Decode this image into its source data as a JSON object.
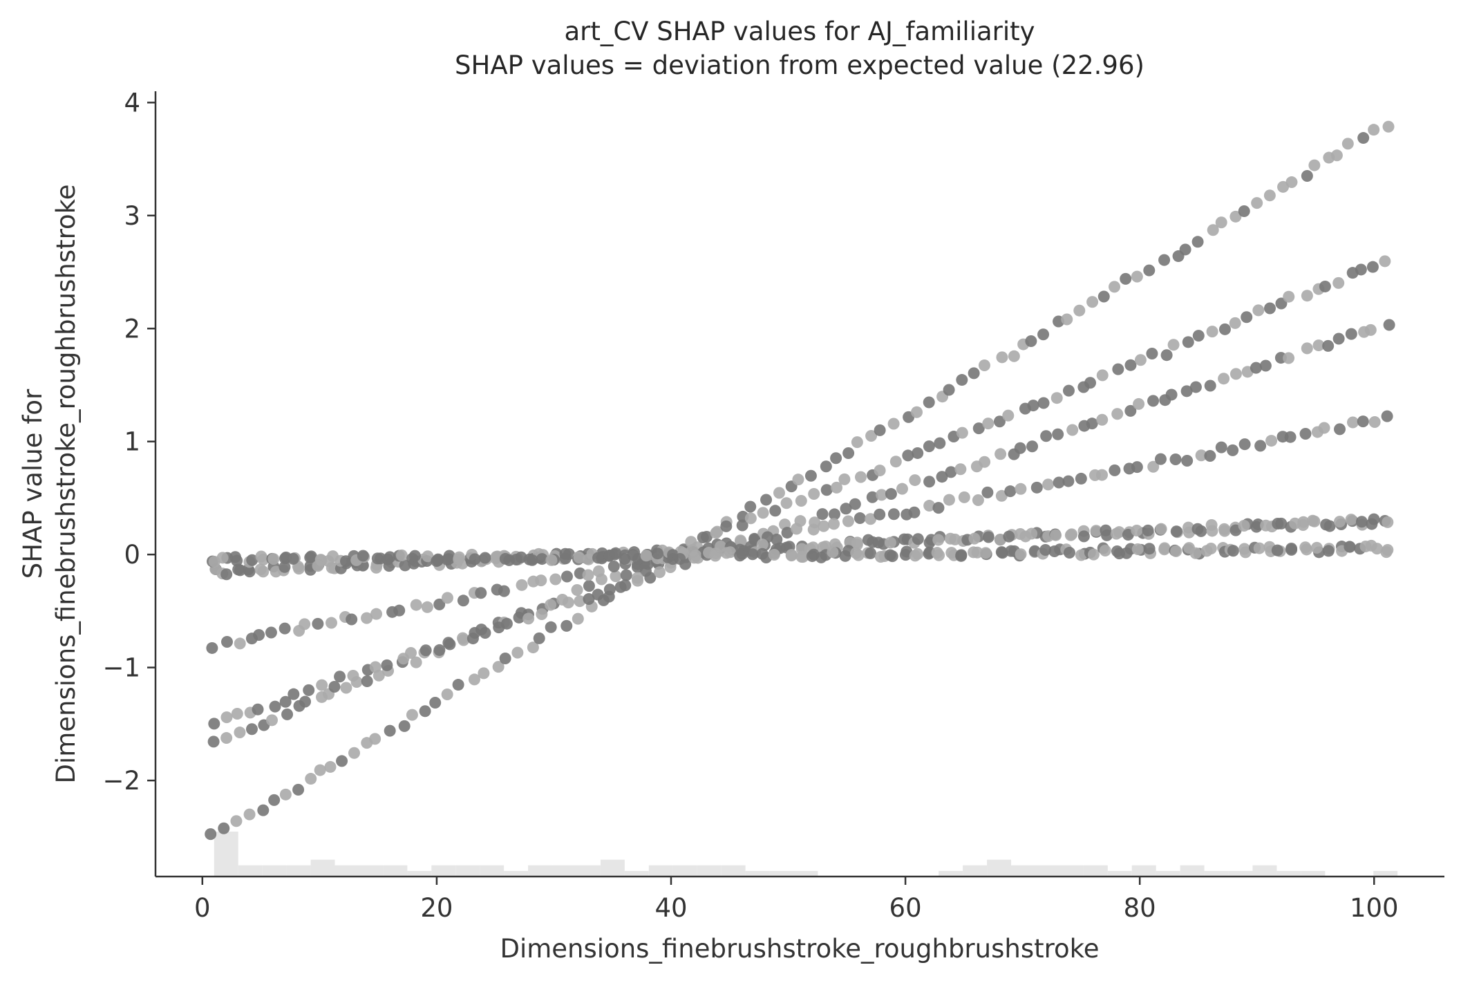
{
  "chart_data": {
    "type": "scatter",
    "title": "art_CV SHAP values for AJ_familiarity",
    "subtitle": "SHAP values = deviation from expected value (22.96)",
    "xlabel": "Dimensions_finebrushstroke_roughbrushstroke",
    "ylabel_line1": "SHAP value for",
    "ylabel_line2": "Dimensions_finebrushstroke_roughbrushstroke",
    "xlim": [
      -4,
      106
    ],
    "ylim": [
      -2.85,
      4.1
    ],
    "xticks": [
      0,
      20,
      40,
      60,
      80,
      100
    ],
    "xtick_labels": [
      "0",
      "20",
      "40",
      "60",
      "80",
      "100"
    ],
    "yticks": [
      -2,
      -1,
      0,
      1,
      2,
      3,
      4
    ],
    "ytick_labels": [
      "−2",
      "−1",
      "0",
      "1",
      "2",
      "3",
      "4"
    ],
    "grid": false,
    "point_colors": [
      "#777777",
      "#aaaaaa"
    ],
    "histogram_color": "#e6e6e6",
    "histogram": {
      "x_start": 1,
      "x_end": 102,
      "counts": [
        8,
        2,
        2,
        2,
        3,
        2,
        2,
        2,
        1,
        2,
        2,
        2,
        1,
        2,
        2,
        2,
        3,
        1,
        2,
        2,
        2,
        2,
        1,
        1,
        1,
        0,
        0,
        0,
        0,
        0,
        1,
        2,
        3,
        2,
        2,
        2,
        2,
        1,
        2,
        1,
        2,
        1,
        1,
        2,
        1,
        1,
        0,
        0,
        1
      ]
    },
    "lines": [
      {
        "x0": 1,
        "y0": -2.5,
        "x1": 101,
        "y1": 3.8
      },
      {
        "x0": 1,
        "y0": -1.65,
        "x1": 101,
        "y1": 2.6
      },
      {
        "x0": 1,
        "y0": -1.5,
        "x1": 101,
        "y1": 2.05
      },
      {
        "x0": 1,
        "y0": -0.8,
        "x1": 101,
        "y1": 1.2
      },
      {
        "x0": 1,
        "y0": -0.15,
        "x1": 101,
        "y1": 0.3
      },
      {
        "x0": 1,
        "y0": -0.05,
        "x1": 101,
        "y1": 0.05
      }
    ]
  }
}
